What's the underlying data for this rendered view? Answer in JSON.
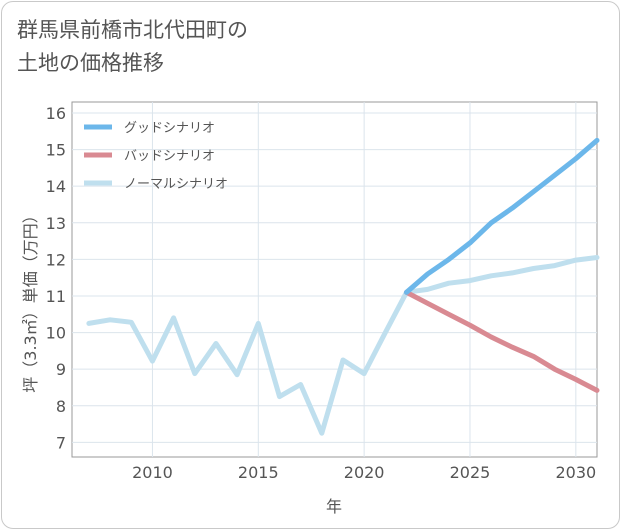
{
  "title_line1": "群馬県前橋市北代田町の",
  "title_line2": "土地の価格推移",
  "chart_data": {
    "type": "line",
    "xlabel": "年",
    "ylabel": "坪（3.3㎡）単価（万円）",
    "xlim": [
      2006.2,
      2031
    ],
    "ylim": [
      6.6,
      16.3
    ],
    "xticks": [
      2010,
      2015,
      2020,
      2025,
      2030
    ],
    "yticks": [
      7,
      8,
      9,
      10,
      11,
      12,
      13,
      14,
      15,
      16
    ],
    "grid": true,
    "legend_position": "top-left",
    "series": [
      {
        "name": "グッドシナリオ",
        "color": "#6cb7ea",
        "x": [
          2022,
          2023,
          2024,
          2025,
          2026,
          2027,
          2028,
          2029,
          2030,
          2031
        ],
        "y": [
          11.1,
          11.6,
          12.0,
          12.45,
          13.0,
          13.4,
          13.85,
          14.3,
          14.75,
          15.25
        ]
      },
      {
        "name": "バッドシナリオ",
        "color": "#d98a92",
        "x": [
          2022,
          2023,
          2024,
          2025,
          2026,
          2027,
          2028,
          2029,
          2030,
          2031
        ],
        "y": [
          11.1,
          10.8,
          10.5,
          10.2,
          9.88,
          9.6,
          9.35,
          9.0,
          8.72,
          8.42
        ]
      },
      {
        "name": "ノーマルシナリオ",
        "color": "#bfdfee",
        "x": [
          2007,
          2008,
          2009,
          2010,
          2011,
          2012,
          2013,
          2014,
          2015,
          2016,
          2017,
          2018,
          2019,
          2020,
          2021,
          2022,
          2023,
          2024,
          2025,
          2026,
          2027,
          2028,
          2029,
          2030,
          2031
        ],
        "y": [
          10.25,
          10.35,
          10.28,
          9.22,
          10.4,
          8.88,
          9.7,
          8.85,
          10.25,
          8.25,
          8.58,
          7.25,
          9.25,
          8.88,
          10.0,
          11.1,
          11.18,
          11.35,
          11.42,
          11.55,
          11.63,
          11.75,
          11.83,
          11.98,
          12.05
        ]
      }
    ]
  }
}
